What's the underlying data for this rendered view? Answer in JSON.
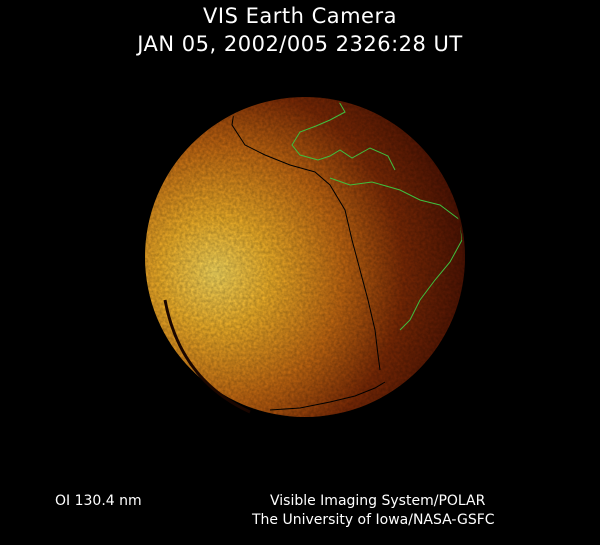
{
  "header": {
    "title": "VIS Earth Camera",
    "timestamp": "JAN 05, 2002/005 2326:28 UT"
  },
  "footer": {
    "filter": "OI  130.4 nm",
    "credit_line1": "Visible Imaging System/POLAR",
    "credit_line2": "The University of Iowa/NASA-GSFC"
  },
  "colors": {
    "background": "#000000",
    "dayside": "#f7d03a",
    "nightside": "#4a0f02",
    "coastline_north": "#3fbf3f",
    "coastline_south": "#000000"
  }
}
